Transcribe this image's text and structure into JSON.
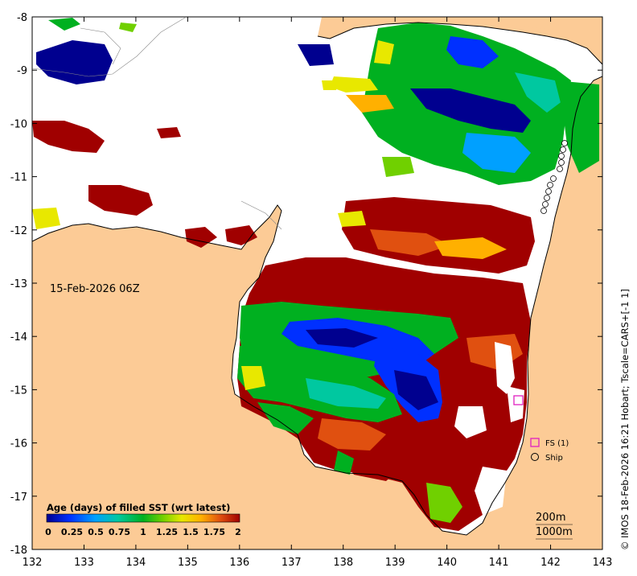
{
  "map": {
    "date_label": "15-Feb-2026 06Z",
    "credit": "© IMOS 18-Feb-2026 16:21 Hobart; Tscale=CARS+[-1 1]",
    "lon_ticks": [
      "132",
      "133",
      "134",
      "135",
      "136",
      "137",
      "138",
      "139",
      "140",
      "141",
      "142",
      "143"
    ],
    "lat_ticks": [
      "-8",
      "-9",
      "-10",
      "-11",
      "-12",
      "-13",
      "-14",
      "-15",
      "-16",
      "-17",
      "-18"
    ],
    "colorbar": {
      "title": "Age (days) of filled SST (wrt latest)",
      "tick_labels": [
        "0",
        "0.25",
        "0.5",
        "0.75",
        "1",
        "1.25",
        "1.5",
        "1.75",
        "2"
      ],
      "colors": [
        "#00008f",
        "#0030ff",
        "#00a0ff",
        "#00c8a0",
        "#00b020",
        "#70d000",
        "#e8e800",
        "#ffb000",
        "#e05010",
        "#a00000"
      ]
    },
    "legend": {
      "fs_label": "FS (1)",
      "ship_label": "Ship"
    },
    "depth_labels": [
      "200m",
      "1000m"
    ],
    "colors": {
      "land": "#fccb96",
      "ocean_gap": "#ffffff",
      "fs_marker": "#e020c0"
    }
  }
}
